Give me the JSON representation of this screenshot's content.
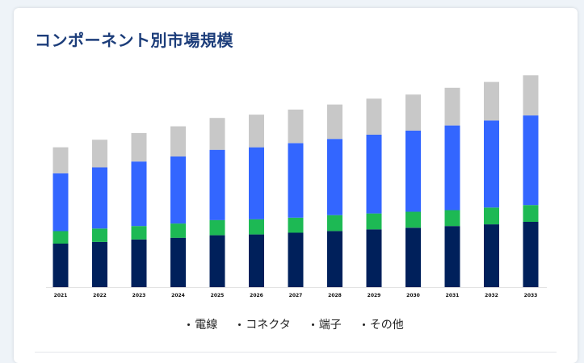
{
  "title": "コンポーネント別市場規模",
  "chart_data": {
    "type": "bar",
    "stacked": true,
    "categories": [
      "2021",
      "2022",
      "2023",
      "2024",
      "2025",
      "2026",
      "2027",
      "2028",
      "2029",
      "2030",
      "2031",
      "2032",
      "2033"
    ],
    "series": [
      {
        "name": "電線",
        "color": "#00205b",
        "values": [
          52,
          54,
          57,
          59,
          62,
          63,
          65,
          67,
          69,
          71,
          73,
          75,
          78
        ]
      },
      {
        "name": "コネクタ",
        "color": "#1db954",
        "values": [
          15,
          16,
          16,
          17,
          18,
          18,
          18,
          19,
          19,
          19,
          19,
          20,
          20
        ]
      },
      {
        "name": "端子",
        "color": "#3366ff",
        "values": [
          69,
          73,
          77,
          80,
          84,
          86,
          89,
          91,
          94,
          97,
          101,
          104,
          107
        ]
      },
      {
        "name": "その他",
        "color": "#c8c8c8",
        "values": [
          31,
          33,
          34,
          36,
          38,
          39,
          40,
          41,
          43,
          43,
          45,
          46,
          48
        ]
      }
    ],
    "ylim": [
      0,
      260
    ],
    "grid": false,
    "legend": "bottom"
  }
}
